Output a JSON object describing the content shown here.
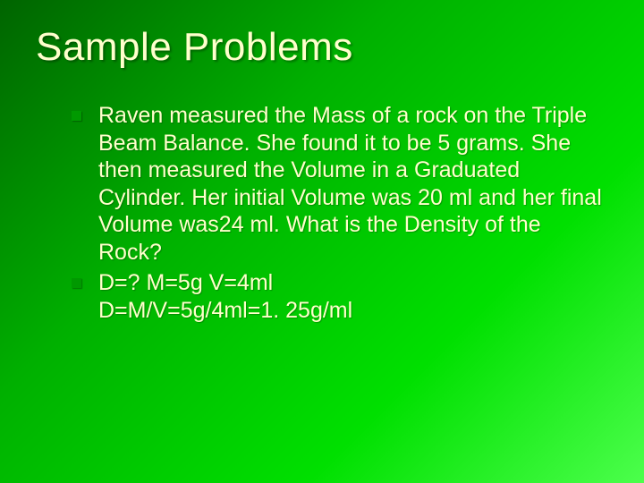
{
  "slide": {
    "background_gradient": [
      "#006400",
      "#00b000",
      "#00e000",
      "#4cff4c"
    ],
    "title": {
      "text": "Sample Problems",
      "font_family": "Impact",
      "font_size_pt": 44,
      "color": "#ffffcc"
    },
    "bullets": [
      {
        "text": "Raven measured the Mass of a rock on the Triple Beam Balance.  She found it to be 5 grams.  She then measured the Volume in a Graduated Cylinder.  Her initial Volume was 20 ml and her final Volume was24 ml.  What is the Density of the Rock?",
        "sublines": [],
        "font_size_pt": 25,
        "color": "#ffffcc",
        "bullet_color": "#009900"
      },
      {
        "text": "D=? M=5g V=4ml",
        "sublines": [
          "D=M/V=5g/4ml=1. 25g/ml"
        ],
        "font_size_pt": 25,
        "color": "#ffffcc",
        "bullet_color": "#009900"
      }
    ]
  }
}
